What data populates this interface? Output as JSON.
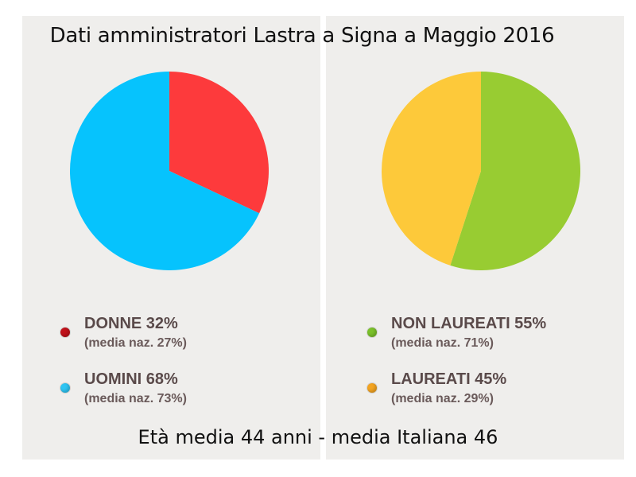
{
  "title": "Dati amministratori Lastra a Signa a Maggio 2016",
  "footer": "Età media 44 anni - media Italiana 46",
  "chart_data": [
    {
      "type": "pie",
      "categories": [
        "DONNE",
        "UOMINI"
      ],
      "values": [
        32,
        68
      ],
      "colors": [
        "#fd3a3c",
        "#06c3fd"
      ],
      "legend": [
        {
          "label": "DONNE 32%",
          "sub": "(media naz. 27%)",
          "dot_color": "#c0111a"
        },
        {
          "label": "UOMINI 68%",
          "sub": "(media naz. 73%)",
          "dot_color": "#2ec4f2"
        }
      ]
    },
    {
      "type": "pie",
      "categories": [
        "NON LAUREATI",
        "LAUREATI"
      ],
      "values": [
        55,
        45
      ],
      "colors": [
        "#98cc32",
        "#fdc93a"
      ],
      "legend": [
        {
          "label": "NON LAUREATI 55%",
          "sub": "(media naz. 71%)",
          "dot_color": "#7ac02a"
        },
        {
          "label": "LAUREATI 45%",
          "sub": "(media naz. 29%)",
          "dot_color": "#f3a421"
        }
      ]
    }
  ]
}
